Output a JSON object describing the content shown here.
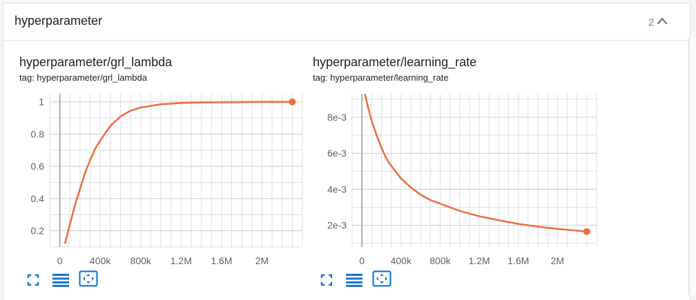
{
  "group": {
    "title": "hyperparameter",
    "count": "2",
    "collapse_icon": "chevron-up-icon"
  },
  "colors": {
    "accent": "#ee6e43",
    "icon_blue": "#1976d2",
    "grid": "#e0e0e0",
    "zero_line": "#9e9e9e"
  },
  "cards": [
    {
      "title": "hyperparameter/grl_lambda",
      "tag": "tag: hyperparameter/grl_lambda",
      "buttons": [
        "fullscreen-icon",
        "toggle-log-scale-icon",
        "fit-domain-icon"
      ]
    },
    {
      "title": "hyperparameter/learning_rate",
      "tag": "tag: hyperparameter/learning_rate",
      "buttons": [
        "fullscreen-icon",
        "toggle-log-scale-icon",
        "fit-domain-icon"
      ]
    }
  ],
  "chart_data": [
    {
      "type": "line",
      "title": "hyperparameter/grl_lambda",
      "xlabel": "",
      "ylabel": "",
      "xlim": [
        -100000,
        2400000
      ],
      "ylim": [
        0.1,
        1.05
      ],
      "xticks": [
        0,
        400000,
        800000,
        1200000,
        1600000,
        2000000
      ],
      "xtick_labels": [
        "0",
        "400k",
        "800k",
        "1.2M",
        "1.6M",
        "2M"
      ],
      "yticks": [
        0.2,
        0.4,
        0.6,
        0.8,
        1
      ],
      "ytick_labels": [
        "0.2",
        "0.4",
        "0.6",
        "0.8",
        "1"
      ],
      "grid": true,
      "series": [
        {
          "color": "#ee6e43",
          "x": [
            50000,
            100000,
            150000,
            200000,
            250000,
            300000,
            350000,
            400000,
            500000,
            600000,
            700000,
            800000,
            1000000,
            1200000,
            1400000,
            1600000,
            1800000,
            2000000,
            2200000,
            2300000
          ],
          "y": [
            0.12,
            0.24,
            0.36,
            0.46,
            0.56,
            0.64,
            0.71,
            0.76,
            0.85,
            0.91,
            0.945,
            0.965,
            0.985,
            0.993,
            0.997,
            0.998,
            0.999,
            1.0,
            1.0,
            1.0
          ],
          "last_point": [
            2300000,
            1.0
          ]
        }
      ]
    },
    {
      "type": "line",
      "title": "hyperparameter/learning_rate",
      "xlabel": "",
      "ylabel": "",
      "xlim": [
        -100000,
        2400000
      ],
      "ylim": [
        0.0008,
        0.0093
      ],
      "xticks": [
        0,
        400000,
        800000,
        1200000,
        1600000,
        2000000
      ],
      "xtick_labels": [
        "0",
        "400k",
        "800k",
        "1.2M",
        "1.6M",
        "2M"
      ],
      "yticks": [
        0.002,
        0.004,
        0.006,
        0.008
      ],
      "ytick_labels": [
        "2e-3",
        "4e-3",
        "6e-3",
        "8e-3"
      ],
      "grid": true,
      "series": [
        {
          "color": "#ee6e43",
          "x": [
            30000,
            60000,
            100000,
            150000,
            200000,
            250000,
            300000,
            400000,
            500000,
            600000,
            700000,
            800000,
            1000000,
            1200000,
            1400000,
            1600000,
            1800000,
            2000000,
            2200000,
            2300000
          ],
          "y": [
            0.0093,
            0.0086,
            0.0078,
            0.007,
            0.0063,
            0.0057,
            0.0053,
            0.0046,
            0.0041,
            0.0037,
            0.0034,
            0.0032,
            0.0028,
            0.0025,
            0.00228,
            0.00208,
            0.00192,
            0.0018,
            0.0017,
            0.00165
          ],
          "last_point": [
            2300000,
            0.00165
          ]
        }
      ]
    }
  ]
}
